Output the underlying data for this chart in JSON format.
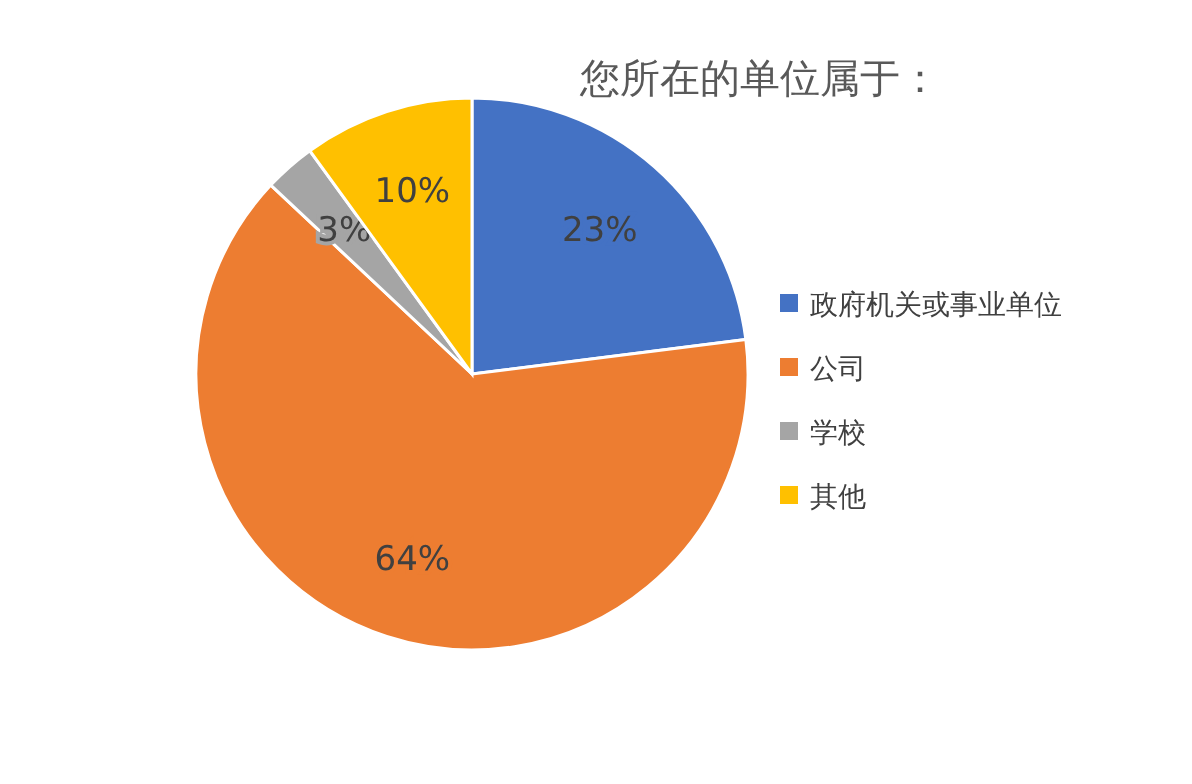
{
  "chart_data": {
    "type": "pie",
    "title": "您所在的单位属于：",
    "categories": [
      "政府机关或事业单位",
      "公司",
      "学校",
      "其他"
    ],
    "values": [
      23,
      64,
      3,
      10
    ],
    "value_labels": [
      "23%",
      "64%",
      "3%",
      "10%"
    ],
    "colors": [
      "#4472c4",
      "#ed7d31",
      "#a5a5a5",
      "#ffc000"
    ],
    "legend": "right"
  }
}
